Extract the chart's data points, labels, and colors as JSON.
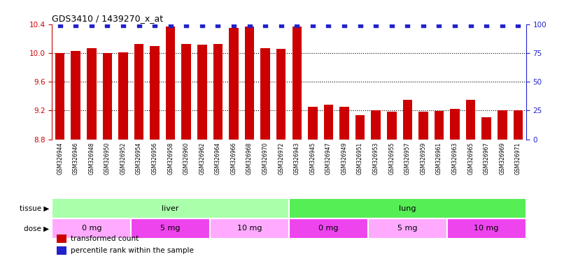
{
  "title": "GDS3410 / 1439270_x_at",
  "samples": [
    "GSM326944",
    "GSM326946",
    "GSM326948",
    "GSM326950",
    "GSM326952",
    "GSM326954",
    "GSM326956",
    "GSM326958",
    "GSM326960",
    "GSM326962",
    "GSM326964",
    "GSM326966",
    "GSM326968",
    "GSM326970",
    "GSM326972",
    "GSM326943",
    "GSM326945",
    "GSM326947",
    "GSM326949",
    "GSM326951",
    "GSM326953",
    "GSM326955",
    "GSM326957",
    "GSM326959",
    "GSM326961",
    "GSM326963",
    "GSM326965",
    "GSM326967",
    "GSM326969",
    "GSM326971"
  ],
  "bar_values": [
    10.0,
    10.03,
    10.07,
    10.0,
    10.01,
    10.12,
    10.1,
    10.37,
    10.12,
    10.11,
    10.12,
    10.35,
    10.37,
    10.07,
    10.06,
    10.37,
    9.25,
    9.28,
    9.25,
    9.14,
    9.2,
    9.18,
    9.35,
    9.18,
    9.19,
    9.22,
    9.35,
    9.11,
    9.2,
    9.2
  ],
  "percentile_values": [
    99,
    99,
    99,
    99,
    99,
    99,
    99,
    99,
    99,
    99,
    99,
    99,
    99,
    99,
    99,
    99,
    99,
    99,
    99,
    99,
    99,
    99,
    99,
    99,
    99,
    99,
    99,
    99,
    99,
    99
  ],
  "ylim_left": [
    8.8,
    10.4
  ],
  "ylim_right": [
    0,
    100
  ],
  "yticks_left": [
    8.8,
    9.2,
    9.6,
    10.0,
    10.4
  ],
  "yticks_right": [
    0,
    25,
    50,
    75,
    100
  ],
  "bar_color": "#cc0000",
  "dot_color": "#2222cc",
  "plot_bg_color": "#ffffff",
  "fig_bg_color": "#ffffff",
  "tissue_groups": [
    {
      "label": "liver",
      "start": 0,
      "end": 14,
      "color": "#aaffaa"
    },
    {
      "label": "lung",
      "start": 15,
      "end": 29,
      "color": "#55ee55"
    }
  ],
  "dose_groups": [
    {
      "label": "0 mg",
      "start": 0,
      "end": 4,
      "color": "#ffaaff"
    },
    {
      "label": "5 mg",
      "start": 5,
      "end": 9,
      "color": "#ee44ee"
    },
    {
      "label": "10 mg",
      "start": 10,
      "end": 14,
      "color": "#ffaaff"
    },
    {
      "label": "0 mg",
      "start": 15,
      "end": 19,
      "color": "#ee44ee"
    },
    {
      "label": "5 mg",
      "start": 20,
      "end": 24,
      "color": "#ffaaff"
    },
    {
      "label": "10 mg",
      "start": 25,
      "end": 29,
      "color": "#ee44ee"
    }
  ],
  "legend_items": [
    {
      "label": "transformed count",
      "color": "#cc0000",
      "marker": "s"
    },
    {
      "label": "percentile rank within the sample",
      "color": "#2222cc",
      "marker": "s"
    }
  ],
  "xtick_bg_color": "#dddddd"
}
